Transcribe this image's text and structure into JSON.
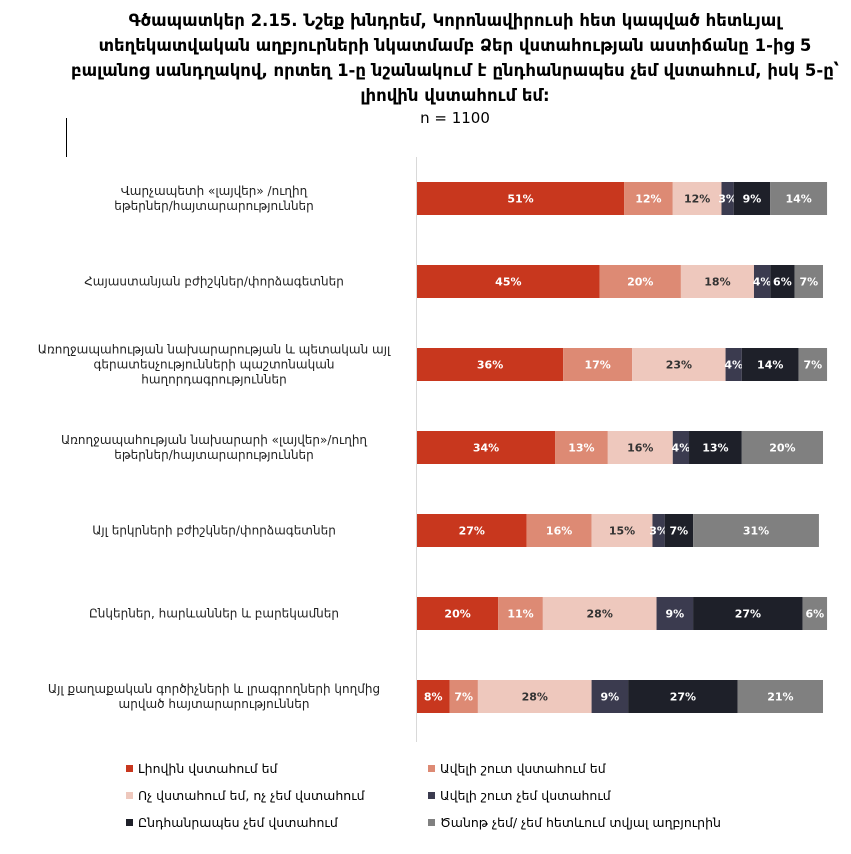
{
  "title": "Գծապատկեր 2.15. Նշեք խնդրեմ, Կորոնավիրուսի հետ կապված հետևյալ տեղեկատվական աղբյուրների նկատմամբ Ձեր վստահության աստիճանը 1-ից 5 բալանոց սանդղակով, որտեղ 1-ը նշանակում է ընդհանրապես չեմ վստահում, իսկ 5-ը՝ լիովին վստահում եմ:",
  "subtitle": "n = 1100",
  "chart_data": {
    "type": "bar",
    "orientation": "horizontal",
    "stacked": true,
    "value_unit": "%",
    "categories": [
      [
        "Վարչապետի «լայվեր» /ուղիղ",
        "եթերներ/հայտարարություններ"
      ],
      [
        "Հայաստանյան բժիշկներ/փորձագետներ"
      ],
      [
        "Առողջապահության նախարարության և պետական այլ",
        "գերատեսչությունների պաշտոնական",
        "հաղորդագրություններ"
      ],
      [
        "Առողջապահության նախարարի «լայվեր»/ուղիղ",
        "եթերներ/հայտարարություններ"
      ],
      [
        "Այլ երկրների բժիշկներ/փորձագետներ"
      ],
      [
        "Ընկերներ, հարևաններ և բարեկամներ"
      ],
      [
        "Այլ քաղաքական գործիչների և լրագրողների կողմից",
        "արված հայտարարություններ"
      ]
    ],
    "series": [
      {
        "name": "Լիովին վստահում եմ",
        "color": "#c8371e",
        "label_color": "#ffffff",
        "values": [
          51,
          45,
          36,
          34,
          27,
          20,
          8
        ]
      },
      {
        "name": "Ավելի շուտ վստահում եմ",
        "color": "#dd8a74",
        "label_color": "#ffffff",
        "values": [
          12,
          20,
          17,
          13,
          16,
          11,
          7
        ]
      },
      {
        "name": "Ոչ վստահում եմ, ոչ չեմ վստահում",
        "color": "#eec8bd",
        "label_color": "#333333",
        "values": [
          12,
          18,
          23,
          16,
          15,
          28,
          28
        ]
      },
      {
        "name": "Ավելի շուտ չեմ վստահում",
        "color": "#3b3b4f",
        "label_color": "#ffffff",
        "values": [
          3,
          4,
          4,
          4,
          3,
          9,
          9
        ]
      },
      {
        "name": "Ընդհանրապես չեմ վստահում",
        "color": "#1e2029",
        "label_color": "#ffffff",
        "values": [
          9,
          6,
          14,
          13,
          7,
          27,
          27
        ]
      },
      {
        "name": "Ծանոթ չեմ/ չեմ հետևում տվյալ աղբյուրին",
        "color": "#808080",
        "label_color": "#ffffff",
        "values": [
          14,
          7,
          7,
          20,
          31,
          6,
          21
        ]
      }
    ],
    "xlim": [
      0,
      100
    ],
    "legend_position": "bottom",
    "grid": false
  }
}
